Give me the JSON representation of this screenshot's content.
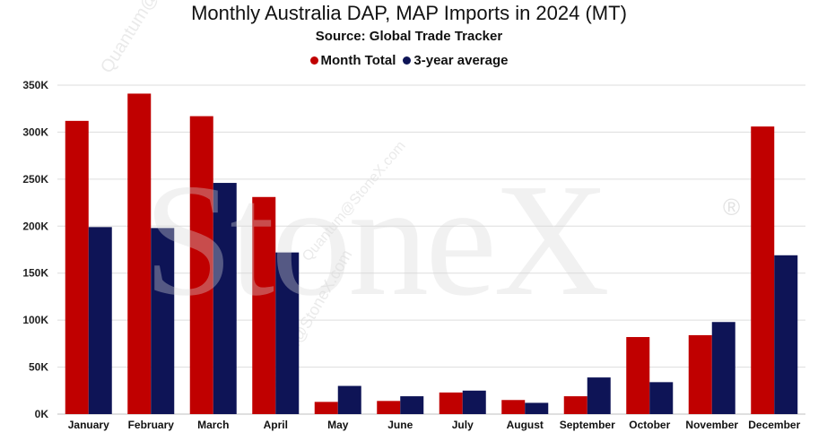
{
  "chart_data": {
    "type": "bar",
    "title": "Monthly Australia DAP, MAP Imports in 2024 (MT)",
    "subtitle": "Source: Global Trade Tracker",
    "categories": [
      "January",
      "February",
      "March",
      "April",
      "May",
      "June",
      "July",
      "August",
      "September",
      "October",
      "November",
      "December"
    ],
    "series": [
      {
        "name": "Month Total",
        "color": "#c00000",
        "values": [
          312000,
          341000,
          317000,
          231000,
          13000,
          14000,
          23000,
          15000,
          19000,
          82000,
          84000,
          306000
        ]
      },
      {
        "name": "3-year average",
        "color": "#0e1456",
        "values": [
          199000,
          198000,
          246000,
          172000,
          30000,
          19000,
          25000,
          12000,
          39000,
          34000,
          98000,
          169000
        ]
      }
    ],
    "ylim": [
      0,
      350000
    ],
    "yticks": [
      0,
      50000,
      100000,
      150000,
      200000,
      250000,
      300000,
      350000
    ],
    "ytick_labels": [
      "0K",
      "50K",
      "100K",
      "150K",
      "200K",
      "250K",
      "300K",
      "350K"
    ],
    "legend_position": "top-center",
    "grid": true
  },
  "watermark": {
    "brand": "StoneX",
    "reg_mark": "®",
    "line1": "Quantum@StoneX.com",
    "line2": "Quantum@StoneX.com",
    "line3": "Quantum@StoneX.com"
  }
}
